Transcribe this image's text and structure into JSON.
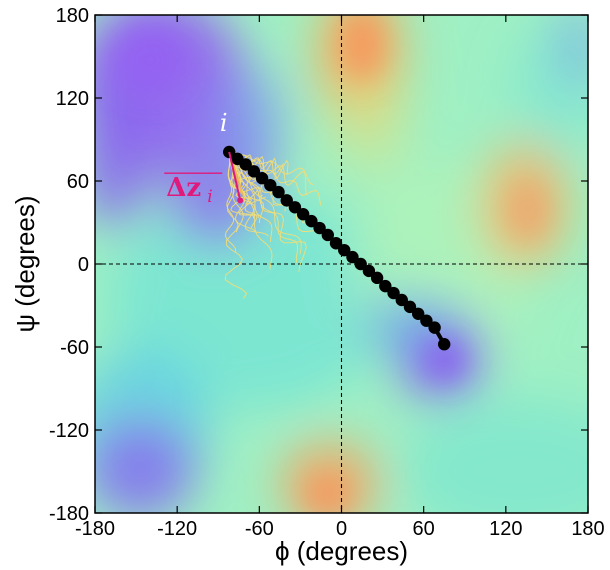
{
  "chart_data": {
    "type": "scatter",
    "title": "",
    "xlabel": "ϕ (degrees)",
    "ylabel": "ψ (degrees)",
    "xlim": [
      -180,
      180
    ],
    "ylim": [
      -180,
      180
    ],
    "xticks": [
      -180,
      -120,
      -60,
      0,
      60,
      120,
      180
    ],
    "yticks": [
      -180,
      -120,
      -60,
      0,
      60,
      120,
      180
    ],
    "grid": false,
    "reference_lines": [
      {
        "orientation": "vertical",
        "at": 0,
        "style": "dashed"
      },
      {
        "orientation": "horizontal",
        "at": 0,
        "style": "dashed"
      }
    ],
    "background": {
      "type": "heatmap",
      "colormap": "rainbow (violet = low, red/orange = high)",
      "high_regions": [
        [
          -5,
          160
        ],
        [
          130,
          40
        ],
        [
          -20,
          -170
        ]
      ],
      "low_regions": [
        [
          -130,
          130
        ],
        [
          -165,
          100
        ],
        [
          75,
          -60
        ],
        [
          -135,
          -140
        ]
      ]
    },
    "path": {
      "name": "",
      "x": [
        -82,
        -76,
        -70,
        -64,
        -58,
        -52,
        -46,
        -40,
        -34,
        -28,
        -22,
        -16,
        -10,
        -4,
        2,
        8,
        14,
        20,
        26,
        32,
        38,
        44,
        50,
        56,
        62,
        68,
        75
      ],
      "y": [
        81,
        76,
        72,
        67,
        62,
        57,
        52,
        46,
        41,
        36,
        31,
        26,
        21,
        15,
        10,
        5,
        0,
        -5,
        -10,
        -16,
        -21,
        -26,
        -31,
        -36,
        -41,
        -46,
        -58
      ],
      "color": "#000000"
    },
    "trajectories": {
      "count": 24,
      "origin": [
        -82,
        81
      ],
      "color": "#f2de78"
    },
    "annotations": [
      {
        "text": "i",
        "x": -86,
        "y": 96,
        "color": "#ffffff"
      },
      {
        "text": "Δz",
        "subscript": "i",
        "color": "#e0197d",
        "x": -128,
        "y": 49,
        "overline": true,
        "arrow_to": [
          -74,
          46
        ]
      }
    ]
  }
}
